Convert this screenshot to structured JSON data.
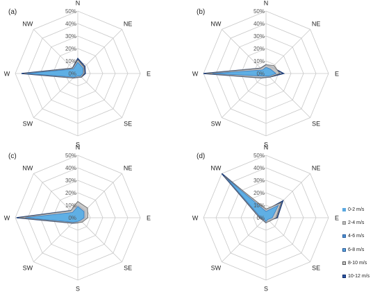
{
  "chart_data": [
    {
      "type": "radar",
      "panel_label": "(a)",
      "categories": [
        "N",
        "NE",
        "E",
        "SE",
        "S",
        "SW",
        "W",
        "NW"
      ],
      "rlim": [
        0,
        50
      ],
      "ticks": [
        "0%",
        "10%",
        "20%",
        "30%",
        "40%",
        "50%"
      ],
      "grid": true,
      "series": [
        {
          "name": "10-12 m/s",
          "values": [
            12,
            8,
            6,
            4,
            3,
            5,
            45,
            6
          ]
        },
        {
          "name": "8-10 m/s",
          "values": [
            11,
            7,
            5,
            4,
            3,
            5,
            43,
            6
          ]
        },
        {
          "name": "6-8 m/s",
          "values": [
            9,
            6,
            4,
            3,
            2,
            4,
            41,
            5
          ]
        }
      ]
    },
    {
      "type": "radar",
      "panel_label": "(b)",
      "categories": [
        "N",
        "NE",
        "E",
        "SE",
        "S",
        "SW",
        "W",
        "NW"
      ],
      "rlim": [
        0,
        50
      ],
      "ticks": [
        "0%",
        "10%",
        "20%",
        "30%",
        "40%",
        "50%"
      ],
      "grid": true,
      "series": [
        {
          "name": "10-12 m/s",
          "values": [
            7,
            7,
            14,
            4,
            3,
            5,
            50,
            6
          ]
        },
        {
          "name": "8-10 m/s",
          "values": [
            7,
            9,
            11,
            4,
            3,
            5,
            48,
            6
          ]
        },
        {
          "name": "6-8 m/s",
          "values": [
            5,
            5,
            8,
            3,
            2,
            3,
            43,
            4
          ]
        }
      ]
    },
    {
      "type": "radar",
      "panel_label": "(c)",
      "categories": [
        "N",
        "NE",
        "E",
        "SE",
        "S",
        "SW",
        "W",
        "NW"
      ],
      "rlim": [
        0,
        50
      ],
      "ticks": [
        "0%",
        "10%",
        "20%",
        "30%",
        "40%",
        "50%"
      ],
      "grid": true,
      "series": [
        {
          "name": "10-12 m/s",
          "values": [
            10,
            8,
            6,
            4,
            4,
            6,
            49,
            8
          ]
        },
        {
          "name": "8-10 m/s",
          "values": [
            13,
            11,
            8,
            5,
            4,
            6,
            47,
            8
          ]
        },
        {
          "name": "6-8 m/s",
          "values": [
            9,
            7,
            5,
            3,
            3,
            5,
            42,
            6
          ]
        }
      ]
    },
    {
      "type": "radar",
      "panel_label": "(d)",
      "categories": [
        "N",
        "NE",
        "E",
        "SE",
        "S",
        "SW",
        "W",
        "NW"
      ],
      "rlim": [
        0,
        50
      ],
      "ticks": [
        "0%",
        "10%",
        "20%",
        "30%",
        "40%",
        "50%"
      ],
      "grid": true,
      "series": [
        {
          "name": "10-12 m/s",
          "values": [
            6,
            19,
            9,
            3,
            4,
            3,
            5,
            50
          ]
        },
        {
          "name": "8-10 m/s",
          "values": [
            7,
            17,
            8,
            4,
            4,
            3,
            5,
            47
          ]
        },
        {
          "name": "6-8 m/s",
          "values": [
            5,
            14,
            5,
            2,
            3,
            2,
            4,
            44
          ]
        }
      ]
    }
  ],
  "legend": {
    "placement": "bottom-right",
    "items": [
      {
        "label": "0-2 m/s",
        "color": "#5aa8e0",
        "border": "#5aa8e0"
      },
      {
        "label": "2-4 m/s",
        "color": "#bbbbbb",
        "border": "#888888"
      },
      {
        "label": "4-6 m/s",
        "color": "#4a8fd0",
        "border": "#2f5f9f"
      },
      {
        "label": "6-8 m/s",
        "color": "#5aa8e0",
        "border": "#1f4f8f"
      },
      {
        "label": "8-10 m/s",
        "color": "#c6c6c6",
        "border": "#555555"
      },
      {
        "label": "10-12 m/s",
        "color": "#2c58a8",
        "border": "#0f2a66"
      }
    ]
  },
  "colors": {
    "grid": "#c8c8c8",
    "text": "#222222",
    "tick_text": "#555555",
    "fill_outer": "#b9b9b9",
    "fill_middle": "#c4c4c4",
    "fill_inner": "#5aaee6",
    "stroke_outer": "#1f3f7a",
    "stroke_middle": "#707070",
    "stroke_inner": "#3a7cc0"
  }
}
